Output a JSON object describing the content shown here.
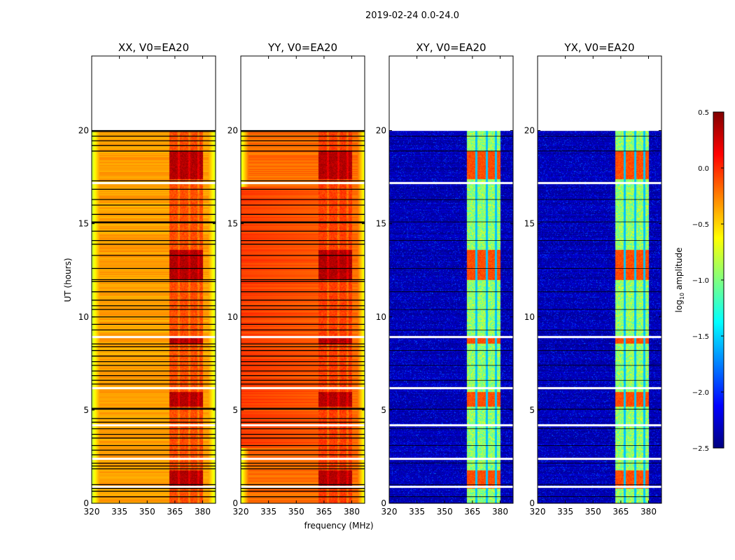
{
  "chart_data": {
    "type": "heatmap",
    "suptitle": "2019-02-24 0.0-24.0",
    "xlabel": "frequency (MHz)",
    "ylabel": "UT (hours)",
    "xlim": [
      320,
      387
    ],
    "ylim": [
      0,
      24
    ],
    "xticks": [
      320,
      335,
      350,
      365,
      380
    ],
    "yticks": [
      0,
      5,
      10,
      15,
      20
    ],
    "data_hours": [
      0,
      20
    ],
    "flagged_white_hours": [
      0.9,
      2.4,
      4.2,
      6.2,
      8.95,
      17.2
    ],
    "rfi_band_mhz": [
      362,
      380
    ],
    "rfi_channel_gaps_mhz": [
      367,
      372.5,
      377.5
    ],
    "hot_hour_ranges": [
      [
        17.4,
        18.9
      ],
      [
        12.0,
        13.6
      ],
      [
        5.2,
        6.0
      ],
      [
        8.6,
        8.9
      ],
      [
        0.8,
        1.8
      ]
    ],
    "panels": [
      {
        "title": "XX, V0=EA20",
        "base_log_amp": -0.35,
        "edge_log_amp": -0.8,
        "band_log_amp": -0.1,
        "hot_log_amp": 0.35,
        "black_lines": true
      },
      {
        "title": "YY, V0=EA20",
        "base_log_amp": -0.2,
        "edge_log_amp": -0.75,
        "band_log_amp": -0.05,
        "hot_log_amp": 0.35,
        "black_lines": true
      },
      {
        "title": "XY, V0=EA20",
        "base_log_amp": -2.35,
        "edge_log_amp": -2.35,
        "band_log_amp": -0.95,
        "hot_log_amp": -0.1,
        "black_lines": false
      },
      {
        "title": "YX, V0=EA20",
        "base_log_amp": -2.35,
        "edge_log_amp": -2.35,
        "band_log_amp": -0.95,
        "hot_log_amp": -0.1,
        "black_lines": false
      }
    ],
    "black_line_hours": [
      0.35,
      0.65,
      0.8,
      1.0,
      1.85,
      2.0,
      2.15,
      2.6,
      2.85,
      3.1,
      3.5,
      3.7,
      4.0,
      4.35,
      4.55,
      5.05,
      5.1,
      6.4,
      6.6,
      6.85,
      7.1,
      7.4,
      7.6,
      7.9,
      8.2,
      8.4,
      8.55,
      9.3,
      9.6,
      10.0,
      10.4,
      10.6,
      10.9,
      11.35,
      11.9,
      12.0,
      12.6,
      13.3,
      13.9,
      14.1,
      14.6,
      15.05,
      15.1,
      15.5,
      16.0,
      16.3,
      16.85,
      17.3,
      18.9,
      19.2,
      19.45,
      19.7,
      19.95,
      20.0
    ],
    "colorbar": {
      "label": "log₁₀ amplitude",
      "label_main": "log",
      "label_sub": "10",
      "label_tail": " amplitude",
      "colormap": "jet",
      "range": [
        -2.5,
        0.5
      ],
      "ticks": [
        0.5,
        0.0,
        -0.5,
        -1.0,
        -1.5,
        -2.0,
        -2.5
      ],
      "tick_labels": [
        "0.5",
        "0.0",
        "−0.5",
        "−1.0",
        "−1.5",
        "−2.0",
        "−2.5"
      ]
    }
  }
}
